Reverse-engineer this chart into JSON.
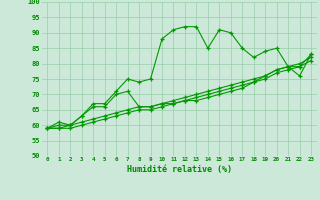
{
  "xlabel": "Humidité relative (%)",
  "xlim": [
    -0.5,
    23.5
  ],
  "ylim": [
    50,
    100
  ],
  "xticks": [
    0,
    1,
    2,
    3,
    4,
    5,
    6,
    7,
    8,
    9,
    10,
    11,
    12,
    13,
    14,
    15,
    16,
    17,
    18,
    19,
    20,
    21,
    22,
    23
  ],
  "yticks": [
    50,
    55,
    60,
    65,
    70,
    75,
    80,
    85,
    90,
    95,
    100
  ],
  "bg_color": "#cce8d8",
  "grid_color": "#99ccaa",
  "line_color": "#009900",
  "marker": "+",
  "lines": [
    [
      59,
      61,
      60,
      63,
      67,
      67,
      71,
      75,
      74,
      75,
      88,
      91,
      92,
      92,
      85,
      91,
      90,
      85,
      82,
      84,
      85,
      79,
      76,
      83
    ],
    [
      59,
      60,
      60,
      63,
      66,
      66,
      70,
      71,
      66,
      66,
      67,
      67,
      68,
      68,
      69,
      70,
      71,
      72,
      74,
      76,
      78,
      79,
      79,
      83
    ],
    [
      59,
      59,
      60,
      61,
      62,
      63,
      64,
      65,
      66,
      66,
      67,
      68,
      69,
      70,
      71,
      72,
      73,
      74,
      75,
      76,
      78,
      79,
      80,
      82
    ],
    [
      59,
      59,
      59,
      60,
      61,
      62,
      63,
      64,
      65,
      65,
      66,
      67,
      68,
      69,
      70,
      71,
      72,
      73,
      74,
      75,
      77,
      78,
      79,
      81
    ]
  ],
  "xlabel_color": "#008800",
  "tick_color": "#008800",
  "font_name": "DejaVu Sans Mono"
}
